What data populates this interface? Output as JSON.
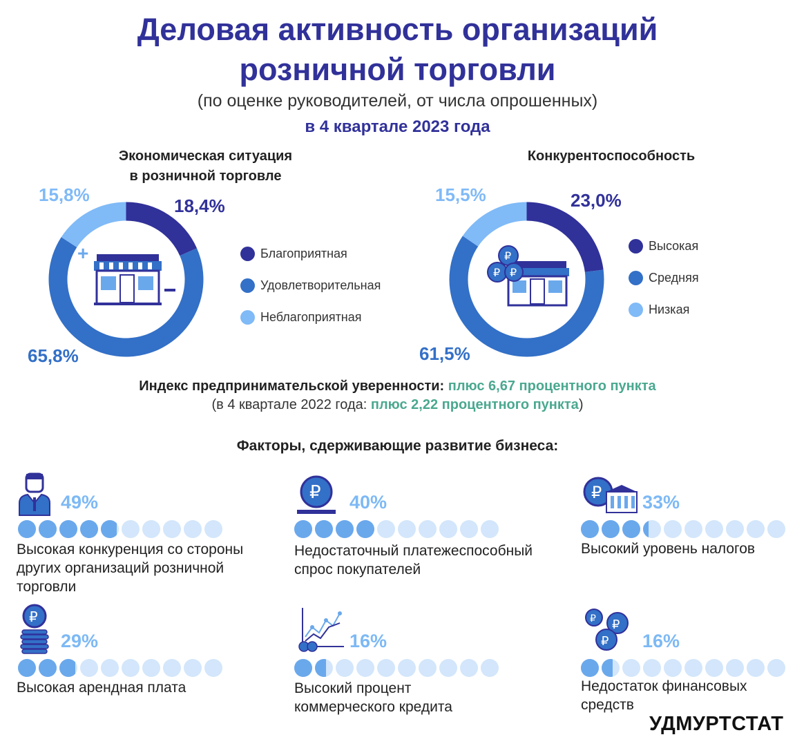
{
  "header": {
    "title_line1": "Деловая активность организаций",
    "title_line2": "розничной торговли",
    "subtitle": "(по оценке руководителей, от числа опрошенных)",
    "period": "в 4 квартале 2023 года"
  },
  "colors": {
    "dark": "#31319a",
    "mid": "#3370c7",
    "light": "#80baf7",
    "green": "#4aa88f",
    "circle_fill": "#6aa8ec",
    "circle_empty": "#d3e6fb"
  },
  "chart_data": [
    {
      "type": "pie",
      "title_line1": "Экономическая ситуация",
      "title_line2": "в розничной торговле",
      "categories": [
        "Благоприятная",
        "Удовлетворительная",
        "Неблагоприятная"
      ],
      "values": [
        18.4,
        65.8,
        15.8
      ],
      "labels": [
        "18,4%",
        "65,8%",
        "15,8%"
      ],
      "colors": [
        "#31319a",
        "#3370c7",
        "#80baf7"
      ]
    },
    {
      "type": "pie",
      "title_line1": "Конкурентоспособность",
      "title_line2": "",
      "categories": [
        "Высокая",
        "Средняя",
        "Низкая"
      ],
      "values": [
        23.0,
        61.5,
        15.5
      ],
      "labels": [
        "23,0%",
        "61,5%",
        "15,5%"
      ],
      "colors": [
        "#31319a",
        "#3370c7",
        "#80baf7"
      ]
    },
    {
      "type": "bar",
      "title": "Факторы, сдерживающие развитие бизнеса:",
      "categories": [
        "Высокая конкуренция со стороны других организаций розничной торговли",
        "Недостаточный платежеспособный спрос покупателей",
        "Высокий уровень налогов",
        "Высокая арендная плата",
        "Высокий процент коммерческого кредита",
        "Недостаток финансовых средств"
      ],
      "values": [
        49,
        40,
        33,
        29,
        16,
        16
      ]
    }
  ],
  "index": {
    "label": "Индекс предпринимательской уверенности:",
    "value": "плюс 6,67 процентного пункта",
    "prev_prefix": "(в 4 квартале 2022 года:",
    "prev_value": "плюс 2,22 процентного пункта",
    "prev_suffix": ")"
  },
  "factors": {
    "title": "Факторы, сдерживающие развитие бизнеса:",
    "items": [
      {
        "icon": "businessman-icon",
        "pct": "49%",
        "value": 49,
        "label_lines": [
          "Высокая конкуренция со стороны",
          "других организаций розничной",
          "торговли"
        ]
      },
      {
        "icon": "ruble-coin-icon",
        "pct": "40%",
        "value": 40,
        "label_lines": [
          "Недостаточный платежеспособный",
          "спрос покупателей"
        ]
      },
      {
        "icon": "bank-ruble-icon",
        "pct": "33%",
        "value": 33,
        "label_lines": [
          "Высокий уровень налогов"
        ]
      },
      {
        "icon": "coin-stack-icon",
        "pct": "29%",
        "value": 29,
        "label_lines": [
          "Высокая арендная плата"
        ]
      },
      {
        "icon": "growth-chart-icon",
        "pct": "16%",
        "value": 16,
        "label_lines": [
          "Высокий процент",
          "коммерческого кредита"
        ]
      },
      {
        "icon": "ruble-coins-icon",
        "pct": "16%",
        "value": 16,
        "label_lines": [
          "Недостаток финансовых",
          "средств"
        ]
      }
    ]
  },
  "footer": {
    "brand": "УДМУРТСТАТ"
  }
}
